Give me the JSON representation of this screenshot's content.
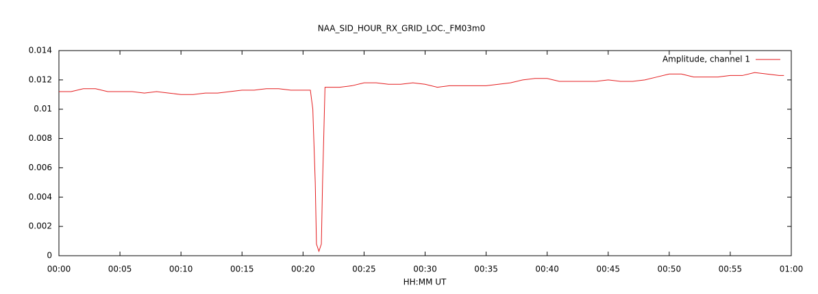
{
  "chart_data": {
    "type": "line",
    "title": "NAA_SID_HOUR_RX_GRID_LOC._FM03m0",
    "x_label": "HH:MM UT",
    "x": [
      0,
      1,
      2,
      3,
      4,
      5,
      6,
      7,
      8,
      9,
      10,
      11,
      12,
      13,
      14,
      15,
      16,
      17,
      18,
      19,
      20,
      20.6,
      20.8,
      21.0,
      21.1,
      21.3,
      21.5,
      21.6,
      21.8,
      22,
      23,
      24,
      25,
      26,
      27,
      28,
      29,
      30,
      31,
      32,
      33,
      34,
      35,
      36,
      37,
      38,
      39,
      40,
      41,
      42,
      43,
      44,
      45,
      46,
      47,
      48,
      49,
      50,
      51,
      52,
      53,
      54,
      55,
      56,
      57,
      58,
      59,
      59.4
    ],
    "series": [
      {
        "name": "Amplitude, channel 1",
        "color": "#e41a1c",
        "values": [
          0.0112,
          0.0112,
          0.0114,
          0.0114,
          0.0112,
          0.0112,
          0.0112,
          0.0111,
          0.0112,
          0.0111,
          0.011,
          0.011,
          0.0111,
          0.0111,
          0.0112,
          0.0113,
          0.0113,
          0.0114,
          0.0114,
          0.0113,
          0.0113,
          0.0113,
          0.01,
          0.005,
          0.0008,
          0.0003,
          0.0008,
          0.005,
          0.0115,
          0.0115,
          0.0115,
          0.0116,
          0.0118,
          0.0118,
          0.0117,
          0.0117,
          0.0118,
          0.0117,
          0.0115,
          0.0116,
          0.0116,
          0.0116,
          0.0116,
          0.0117,
          0.0118,
          0.012,
          0.0121,
          0.0121,
          0.0119,
          0.0119,
          0.0119,
          0.0119,
          0.012,
          0.0119,
          0.0119,
          0.012,
          0.0122,
          0.0124,
          0.0124,
          0.0122,
          0.0122,
          0.0122,
          0.0123,
          0.0123,
          0.0125,
          0.0124,
          0.0123,
          0.0123
        ]
      }
    ],
    "xlim": [
      0,
      60
    ],
    "xticks": [
      {
        "value": 0,
        "label": "00:00"
      },
      {
        "value": 5,
        "label": "00:05"
      },
      {
        "value": 10,
        "label": "00:10"
      },
      {
        "value": 15,
        "label": "00:15"
      },
      {
        "value": 20,
        "label": "00:20"
      },
      {
        "value": 25,
        "label": "00:25"
      },
      {
        "value": 30,
        "label": "00:30"
      },
      {
        "value": 35,
        "label": "00:35"
      },
      {
        "value": 40,
        "label": "00:40"
      },
      {
        "value": 45,
        "label": "00:45"
      },
      {
        "value": 50,
        "label": "00:50"
      },
      {
        "value": 55,
        "label": "00:55"
      },
      {
        "value": 60,
        "label": "01:00"
      }
    ],
    "ylim": [
      0,
      0.014
    ],
    "yticks": [
      0,
      0.002,
      0.004,
      0.006,
      0.008,
      0.01,
      0.012,
      0.014
    ],
    "grid": false,
    "legend": "top-right"
  }
}
